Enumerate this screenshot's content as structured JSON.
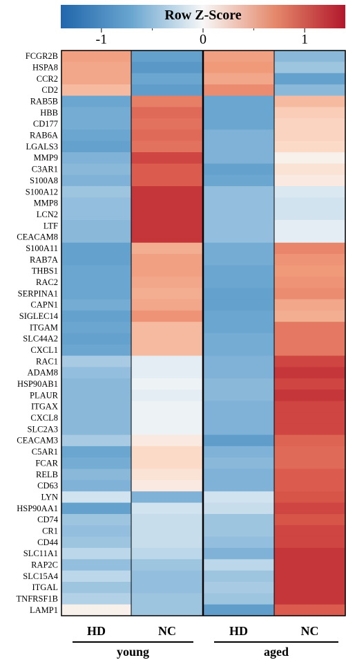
{
  "chart_data": {
    "type": "heatmap",
    "title_partial": "",
    "colorbar": {
      "label": "Row Z-Score",
      "ticks": [
        "-1",
        "0",
        "1"
      ],
      "range": [
        -1.4,
        1.4
      ],
      "colors": {
        "low": "#2166ac",
        "mid": "#f7f7f7",
        "high": "#b2182b"
      }
    },
    "columns": [
      "HD",
      "NC",
      "HD",
      "NC"
    ],
    "groups": [
      "young",
      "aged"
    ],
    "rows": [
      "FCGR2B",
      "HSPA8",
      "CCR2",
      "CD2",
      "RAB5B",
      "HBB",
      "CD177",
      "RAB6A",
      "LGALS3",
      "MMP9",
      "C3AR1",
      "S100A8",
      "S100A12",
      "MMP8",
      "LCN2",
      "LTF",
      "CEACAM8",
      "S100A11",
      "RAB7A",
      "THBS1",
      "RAC2",
      "SERPINA1",
      "CAPN1",
      "SIGLEC14",
      "ITGAM",
      "SLC44A2",
      "CXCL1",
      "RAC1",
      "ADAM8",
      "HSP90AB1",
      "PLAUR",
      "ITGAX",
      "CXCL8",
      "SLC2A3",
      "CEACAM3",
      "C5AR1",
      "FCAR",
      "RELB",
      "CD63",
      "LYN",
      "HSP90AA1",
      "CD74",
      "CR1",
      "CD44",
      "SLC11A1",
      "RAP2C",
      "SLC15A4",
      "ITGAL",
      "TNFRSF1B",
      "LAMP1"
    ],
    "values": [
      [
        0.65,
        -0.75,
        0.65,
        -0.55
      ],
      [
        0.6,
        -0.85,
        0.7,
        -0.45
      ],
      [
        0.6,
        -0.7,
        0.6,
        -0.75
      ],
      [
        0.45,
        -0.8,
        0.8,
        -0.55
      ],
      [
        -0.7,
        0.9,
        -0.7,
        0.45
      ],
      [
        -0.65,
        1.05,
        -0.7,
        0.3
      ],
      [
        -0.65,
        1.0,
        -0.7,
        0.25
      ],
      [
        -0.7,
        1.05,
        -0.6,
        0.25
      ],
      [
        -0.75,
        1.0,
        -0.6,
        0.2
      ],
      [
        -0.6,
        1.25,
        -0.6,
        0.05
      ],
      [
        -0.55,
        1.15,
        -0.75,
        0.15
      ],
      [
        -0.6,
        1.15,
        -0.7,
        0.1
      ],
      [
        -0.45,
        1.3,
        -0.5,
        -0.15
      ],
      [
        -0.5,
        1.3,
        -0.5,
        -0.2
      ],
      [
        -0.5,
        1.3,
        -0.5,
        -0.2
      ],
      [
        -0.55,
        1.3,
        -0.5,
        -0.1
      ],
      [
        -0.55,
        1.3,
        -0.5,
        -0.1
      ],
      [
        -0.75,
        0.55,
        -0.65,
        0.85
      ],
      [
        -0.75,
        0.65,
        -0.65,
        0.75
      ],
      [
        -0.7,
        0.65,
        -0.7,
        0.7
      ],
      [
        -0.7,
        0.6,
        -0.7,
        0.75
      ],
      [
        -0.7,
        0.55,
        -0.75,
        0.8
      ],
      [
        -0.65,
        0.6,
        -0.75,
        0.6
      ],
      [
        -0.75,
        0.75,
        -0.7,
        0.55
      ],
      [
        -0.7,
        0.45,
        -0.7,
        0.95
      ],
      [
        -0.75,
        0.45,
        -0.65,
        0.95
      ],
      [
        -0.7,
        0.45,
        -0.65,
        0.95
      ],
      [
        -0.4,
        -0.1,
        -0.6,
        1.25
      ],
      [
        -0.5,
        -0.1,
        -0.6,
        1.3
      ],
      [
        -0.55,
        -0.05,
        -0.55,
        1.25
      ],
      [
        -0.55,
        -0.1,
        -0.55,
        1.3
      ],
      [
        -0.55,
        -0.05,
        -0.6,
        1.25
      ],
      [
        -0.55,
        -0.05,
        -0.6,
        1.25
      ],
      [
        -0.55,
        -0.05,
        -0.6,
        1.25
      ],
      [
        -0.4,
        0.1,
        -0.8,
        1.1
      ],
      [
        -0.7,
        0.2,
        -0.6,
        1.05
      ],
      [
        -0.65,
        0.2,
        -0.55,
        1.05
      ],
      [
        -0.55,
        0.15,
        -0.6,
        1.15
      ],
      [
        -0.6,
        0.1,
        -0.6,
        1.15
      ],
      [
        -0.2,
        -0.6,
        -0.2,
        1.2
      ],
      [
        -0.75,
        -0.2,
        -0.25,
        1.25
      ],
      [
        -0.45,
        -0.25,
        -0.45,
        1.2
      ],
      [
        -0.5,
        -0.25,
        -0.45,
        1.25
      ],
      [
        -0.45,
        -0.25,
        -0.5,
        1.25
      ],
      [
        -0.3,
        -0.3,
        -0.6,
        1.3
      ],
      [
        -0.5,
        -0.45,
        -0.3,
        1.3
      ],
      [
        -0.3,
        -0.5,
        -0.45,
        1.3
      ],
      [
        -0.45,
        -0.5,
        -0.4,
        1.3
      ],
      [
        -0.35,
        -0.45,
        -0.45,
        1.3
      ],
      [
        0.05,
        -0.45,
        -0.8,
        1.15
      ]
    ]
  }
}
